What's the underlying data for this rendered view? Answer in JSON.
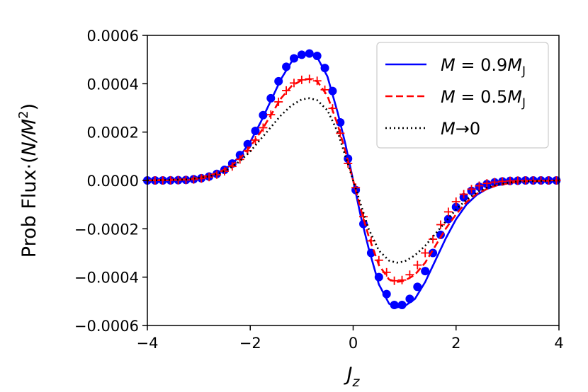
{
  "chart_data": {
    "type": "line",
    "title": "",
    "xlabel": "J",
    "xlabel_sub": "z",
    "ylabel_prefix": "Prob Flux·(",
    "ylabel_var": "N/M",
    "ylabel_sup": "2",
    "ylabel_suffix": ")",
    "xlim": [
      -4,
      4
    ],
    "ylim": [
      -0.0006,
      0.0006
    ],
    "xticks": [
      -4,
      -2,
      0,
      2,
      4
    ],
    "xtick_labels": [
      "−4",
      "−2",
      "0",
      "2",
      "4"
    ],
    "yticks": [
      -0.0006,
      -0.0004,
      -0.0002,
      0.0,
      0.0002,
      0.0004,
      0.0006
    ],
    "ytick_labels": [
      "−0.0006",
      "−0.0004",
      "−0.0002",
      "0.0000",
      "0.0002",
      "0.0004",
      "0.0006"
    ],
    "grid": false,
    "legend_position": "top-right",
    "series": [
      {
        "name": "M = 0.9M_J",
        "legend_math": {
          "var": "M",
          "eq": " = 0.9",
          "var2": "M",
          "sub": "J"
        },
        "color": "#0000ff",
        "line_style": "solid",
        "marker": "circle",
        "amplitude": 0.000525,
        "x": [
          -4.0,
          -3.2,
          -2.8,
          -2.6,
          -2.4,
          -2.2,
          -2.0,
          -1.8,
          -1.6,
          -1.4,
          -1.2,
          -1.0,
          -0.85,
          -0.7,
          -0.5,
          -0.3,
          -0.15,
          0.0,
          0.15,
          0.3,
          0.5,
          0.7,
          0.85,
          1.0,
          1.2,
          1.4,
          1.6,
          1.8,
          2.0,
          2.2,
          2.4,
          2.6,
          2.8,
          3.2,
          4.0
        ],
        "values": [
          0.0,
          5e-06,
          2e-05,
          3.5e-05,
          6e-05,
          0.0001,
          0.00016,
          0.00024,
          0.00033,
          0.00042,
          0.00049,
          0.00052,
          0.000525,
          0.00051,
          0.00043,
          0.00028,
          0.00015,
          0.0,
          -0.00015,
          -0.00028,
          -0.00043,
          -0.00051,
          -0.000525,
          -0.00052,
          -0.00049,
          -0.00042,
          -0.00033,
          -0.00024,
          -0.00016,
          -0.0001,
          -6e-05,
          -3.5e-05,
          -2e-05,
          -5e-06,
          0.0
        ],
        "points": [
          [
            -4.0,
            0.0
          ],
          [
            -3.85,
            0.0
          ],
          [
            -3.7,
            0.0
          ],
          [
            -3.55,
            5e-07
          ],
          [
            -3.4,
            1e-06
          ],
          [
            -3.25,
            2e-06
          ],
          [
            -3.1,
            5e-06
          ],
          [
            -2.95,
            9e-06
          ],
          [
            -2.8,
            1.6e-05
          ],
          [
            -2.65,
            2.7e-05
          ],
          [
            -2.5,
            4.4e-05
          ],
          [
            -2.35,
            7e-05
          ],
          [
            -2.2,
            0.000105
          ],
          [
            -2.05,
            0.00015
          ],
          [
            -1.9,
            0.000205
          ],
          [
            -1.75,
            0.00027
          ],
          [
            -1.6,
            0.00034
          ],
          [
            -1.45,
            0.00041
          ],
          [
            -1.3,
            0.00047
          ],
          [
            -1.15,
            0.000505
          ],
          [
            -1.0,
            0.00052
          ],
          [
            -0.85,
            0.000525
          ],
          [
            -0.7,
            0.000515
          ],
          [
            -0.55,
            0.000465
          ],
          [
            -0.4,
            0.00037
          ],
          [
            -0.25,
            0.00024
          ],
          [
            -0.1,
            9e-05
          ],
          [
            0.05,
            -4e-05
          ],
          [
            0.2,
            -0.00018
          ],
          [
            0.35,
            -0.0003
          ],
          [
            0.5,
            -0.0004
          ],
          [
            0.65,
            -0.00047
          ],
          [
            0.8,
            -0.000515
          ],
          [
            0.95,
            -0.000515
          ],
          [
            1.1,
            -0.00049
          ],
          [
            1.25,
            -0.00044
          ],
          [
            1.4,
            -0.000375
          ],
          [
            1.55,
            -0.0003
          ],
          [
            1.7,
            -0.000225
          ],
          [
            1.85,
            -0.00016
          ],
          [
            2.0,
            -0.00011
          ],
          [
            2.15,
            -7e-05
          ],
          [
            2.3,
            -4.3e-05
          ],
          [
            2.45,
            -2.6e-05
          ],
          [
            2.6,
            -1.5e-05
          ],
          [
            2.75,
            -8e-06
          ],
          [
            2.9,
            -4e-06
          ],
          [
            3.05,
            -2e-06
          ],
          [
            3.2,
            -1e-06
          ],
          [
            3.35,
            0.0
          ],
          [
            3.5,
            0.0
          ],
          [
            3.65,
            0.0
          ],
          [
            3.8,
            0.0
          ],
          [
            3.95,
            0.0
          ]
        ]
      },
      {
        "name": "M = 0.5M_J",
        "legend_math": {
          "var": "M",
          "eq": " = 0.5",
          "var2": "M",
          "sub": "J"
        },
        "color": "#ff0000",
        "line_style": "dashed",
        "marker": "plus",
        "amplitude": 0.00042,
        "x": [
          -4.0,
          -3.2,
          -2.8,
          -2.6,
          -2.4,
          -2.2,
          -2.0,
          -1.8,
          -1.6,
          -1.4,
          -1.2,
          -1.0,
          -0.85,
          -0.7,
          -0.5,
          -0.3,
          -0.15,
          0.0,
          0.15,
          0.3,
          0.5,
          0.7,
          0.85,
          1.0,
          1.2,
          1.4,
          1.6,
          1.8,
          2.0,
          2.2,
          2.4,
          2.6,
          2.8,
          3.2,
          4.0
        ],
        "values": [
          0.0,
          5e-06,
          2e-05,
          3.5e-05,
          5.5e-05,
          9e-05,
          0.00014,
          0.0002,
          0.00027,
          0.00034,
          0.00039,
          0.000415,
          0.00042,
          0.00041,
          0.00035,
          0.00023,
          0.00012,
          0.0,
          -0.00012,
          -0.00023,
          -0.00035,
          -0.00041,
          -0.00042,
          -0.000415,
          -0.00039,
          -0.00034,
          -0.00027,
          -0.0002,
          -0.00014,
          -9e-05,
          -5.5e-05,
          -3.5e-05,
          -2e-05,
          -5e-06,
          0.0
        ],
        "points": [
          [
            -4.0,
            0.0
          ],
          [
            -3.85,
            0.0
          ],
          [
            -3.7,
            0.0
          ],
          [
            -3.55,
            5e-07
          ],
          [
            -3.4,
            1e-06
          ],
          [
            -3.25,
            2e-06
          ],
          [
            -3.1,
            4e-06
          ],
          [
            -2.95,
            8e-06
          ],
          [
            -2.8,
            1.4e-05
          ],
          [
            -2.65,
            2.4e-05
          ],
          [
            -2.5,
            3.8e-05
          ],
          [
            -2.35,
            5.8e-05
          ],
          [
            -2.2,
            8.7e-05
          ],
          [
            -2.05,
            0.000123
          ],
          [
            -1.9,
            0.000167
          ],
          [
            -1.75,
            0.000218
          ],
          [
            -1.6,
            0.000272
          ],
          [
            -1.45,
            0.000325
          ],
          [
            -1.3,
            0.000372
          ],
          [
            -1.15,
            0.000403
          ],
          [
            -1.0,
            0.000416
          ],
          [
            -0.85,
            0.00042
          ],
          [
            -0.7,
            0.000412
          ],
          [
            -0.55,
            0.000375
          ],
          [
            -0.4,
            0.000298
          ],
          [
            -0.25,
            0.000195
          ],
          [
            -0.1,
            7e-05
          ],
          [
            0.05,
            -3e-05
          ],
          [
            0.2,
            -0.00015
          ],
          [
            0.35,
            -0.00025
          ],
          [
            0.5,
            -0.00033
          ],
          [
            0.65,
            -0.00038
          ],
          [
            0.8,
            -0.000415
          ],
          [
            0.95,
            -0.000412
          ],
          [
            1.1,
            -0.00039
          ],
          [
            1.25,
            -0.00035
          ],
          [
            1.4,
            -0.0003
          ],
          [
            1.55,
            -0.000243
          ],
          [
            1.7,
            -0.000183
          ],
          [
            1.85,
            -0.00013
          ],
          [
            2.0,
            -8.8e-05
          ],
          [
            2.15,
            -5.7e-05
          ],
          [
            2.3,
            -3.6e-05
          ],
          [
            2.45,
            -2.2e-05
          ],
          [
            2.6,
            -1.2e-05
          ],
          [
            2.75,
            -7e-06
          ],
          [
            2.9,
            -4e-06
          ],
          [
            3.05,
            -2e-06
          ],
          [
            3.2,
            -1e-06
          ],
          [
            3.35,
            0.0
          ],
          [
            3.5,
            0.0
          ],
          [
            3.65,
            0.0
          ],
          [
            3.8,
            0.0
          ],
          [
            3.95,
            0.0
          ]
        ]
      },
      {
        "name": "M→0",
        "legend_math": {
          "var": "M",
          "eq": "→0",
          "var2": "",
          "sub": ""
        },
        "color": "#000000",
        "line_style": "dotted",
        "marker": "none",
        "amplitude": 0.00034,
        "x": [
          -4.0,
          -3.2,
          -2.8,
          -2.6,
          -2.4,
          -2.2,
          -2.0,
          -1.8,
          -1.6,
          -1.4,
          -1.2,
          -1.0,
          -0.85,
          -0.7,
          -0.5,
          -0.3,
          -0.15,
          0.0,
          0.15,
          0.3,
          0.5,
          0.7,
          0.85,
          1.0,
          1.2,
          1.4,
          1.6,
          1.8,
          2.0,
          2.2,
          2.4,
          2.6,
          2.8,
          3.2,
          4.0
        ],
        "values": [
          0.0,
          4e-06,
          1.7e-05,
          3e-05,
          5e-05,
          8e-05,
          0.00012,
          0.00017,
          0.00022,
          0.00027,
          0.00031,
          0.000335,
          0.00034,
          0.000332,
          0.00029,
          0.0002,
          0.0001,
          0.0,
          -0.0001,
          -0.0002,
          -0.00029,
          -0.000332,
          -0.00034,
          -0.000335,
          -0.00031,
          -0.00027,
          -0.00022,
          -0.00017,
          -0.00012,
          -8e-05,
          -5e-05,
          -3e-05,
          -1.7e-05,
          -4e-06,
          0.0
        ],
        "points": []
      }
    ]
  }
}
